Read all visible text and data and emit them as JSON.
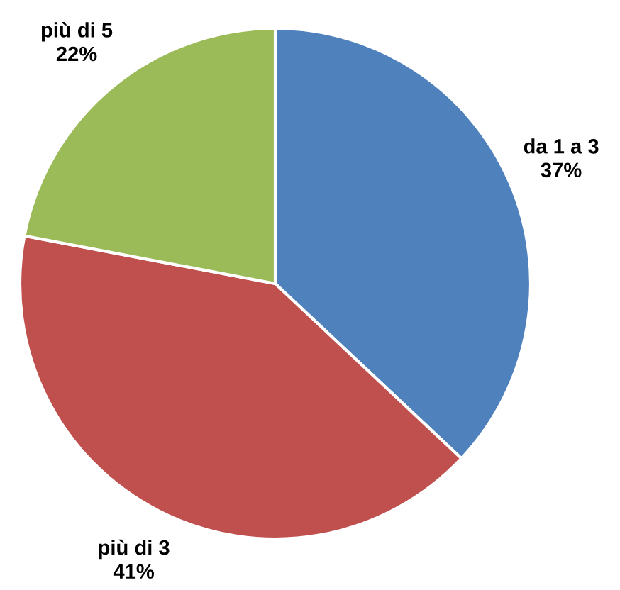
{
  "chart_data": {
    "type": "pie",
    "categories": [
      "da 1 a 3",
      "più di 3",
      "più di 5"
    ],
    "values": [
      37,
      41,
      22
    ],
    "colors": [
      "#4f81bd",
      "#c0504d",
      "#9bbb59"
    ],
    "value_labels": [
      "37%",
      "41%",
      "22%"
    ],
    "legend": false
  }
}
